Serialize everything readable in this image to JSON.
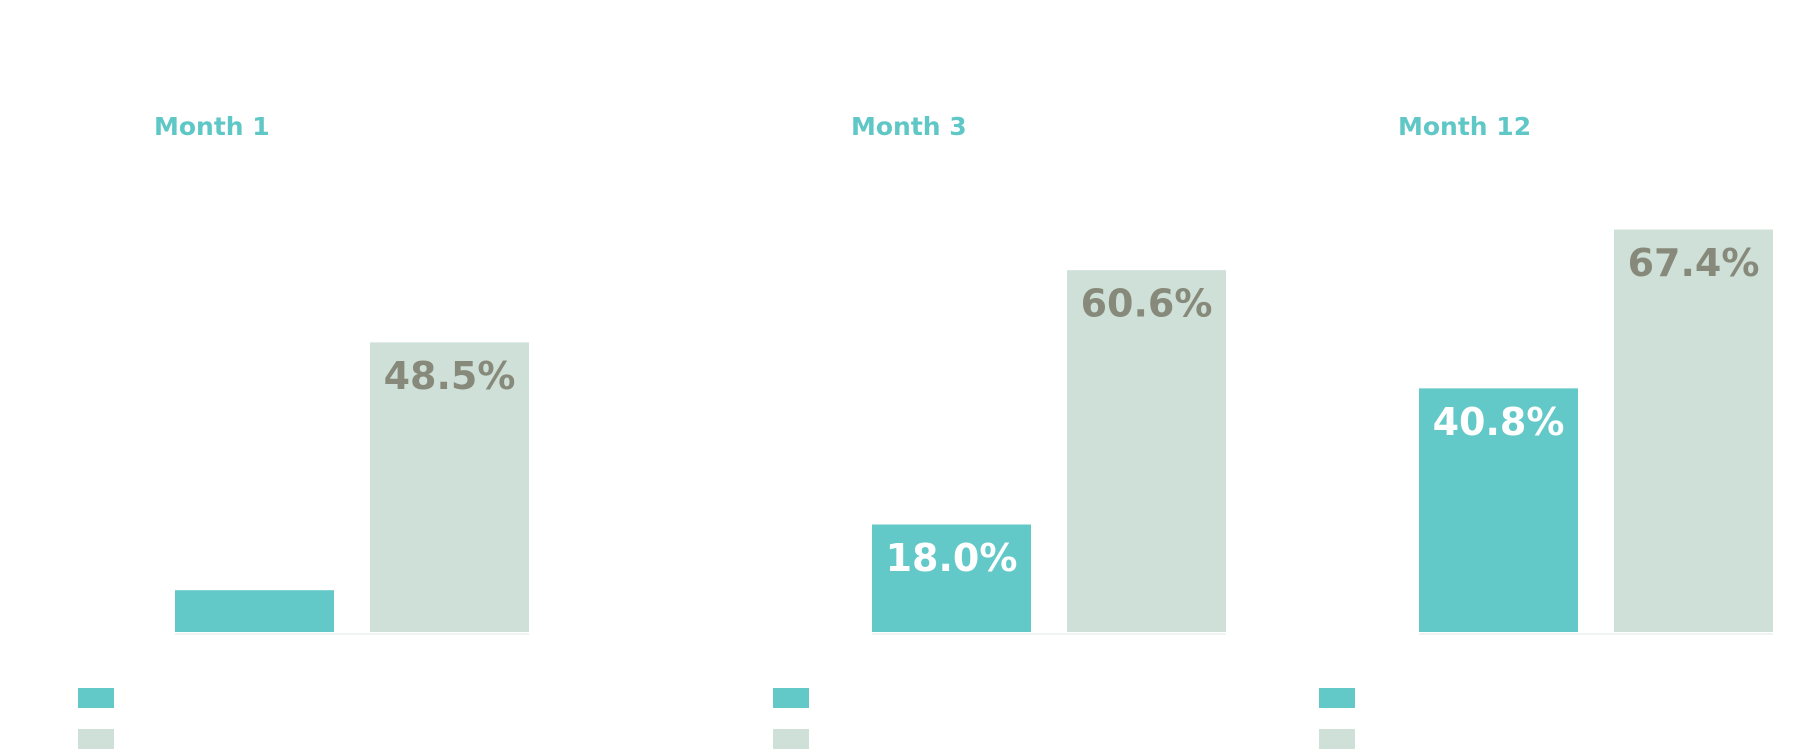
{
  "chart_data": [
    {
      "type": "bar",
      "title": "Month 1",
      "ylim": [
        0,
        70
      ],
      "series": [
        {
          "color": "#62c9c8",
          "values": [
            7
          ]
        },
        {
          "color": "#cfe0d8",
          "values": [
            48.5
          ],
          "value_labels": [
            "48.5%"
          ]
        }
      ]
    },
    {
      "type": "bar",
      "title": "Month 3",
      "ylim": [
        0,
        70
      ],
      "series": [
        {
          "color": "#62c9c8",
          "values": [
            18.0
          ],
          "value_labels": [
            "18.0%"
          ]
        },
        {
          "color": "#cfe0d8",
          "values": [
            60.6
          ],
          "value_labels": [
            "60.6%"
          ]
        }
      ]
    },
    {
      "type": "bar",
      "title": "Month 12",
      "ylim": [
        0,
        70
      ],
      "series": [
        {
          "color": "#62c9c8",
          "values": [
            40.8
          ],
          "value_labels": [
            "40.8%"
          ]
        },
        {
          "color": "#cfe0d8",
          "values": [
            67.4
          ],
          "value_labels": [
            "67.4%"
          ]
        }
      ]
    }
  ]
}
